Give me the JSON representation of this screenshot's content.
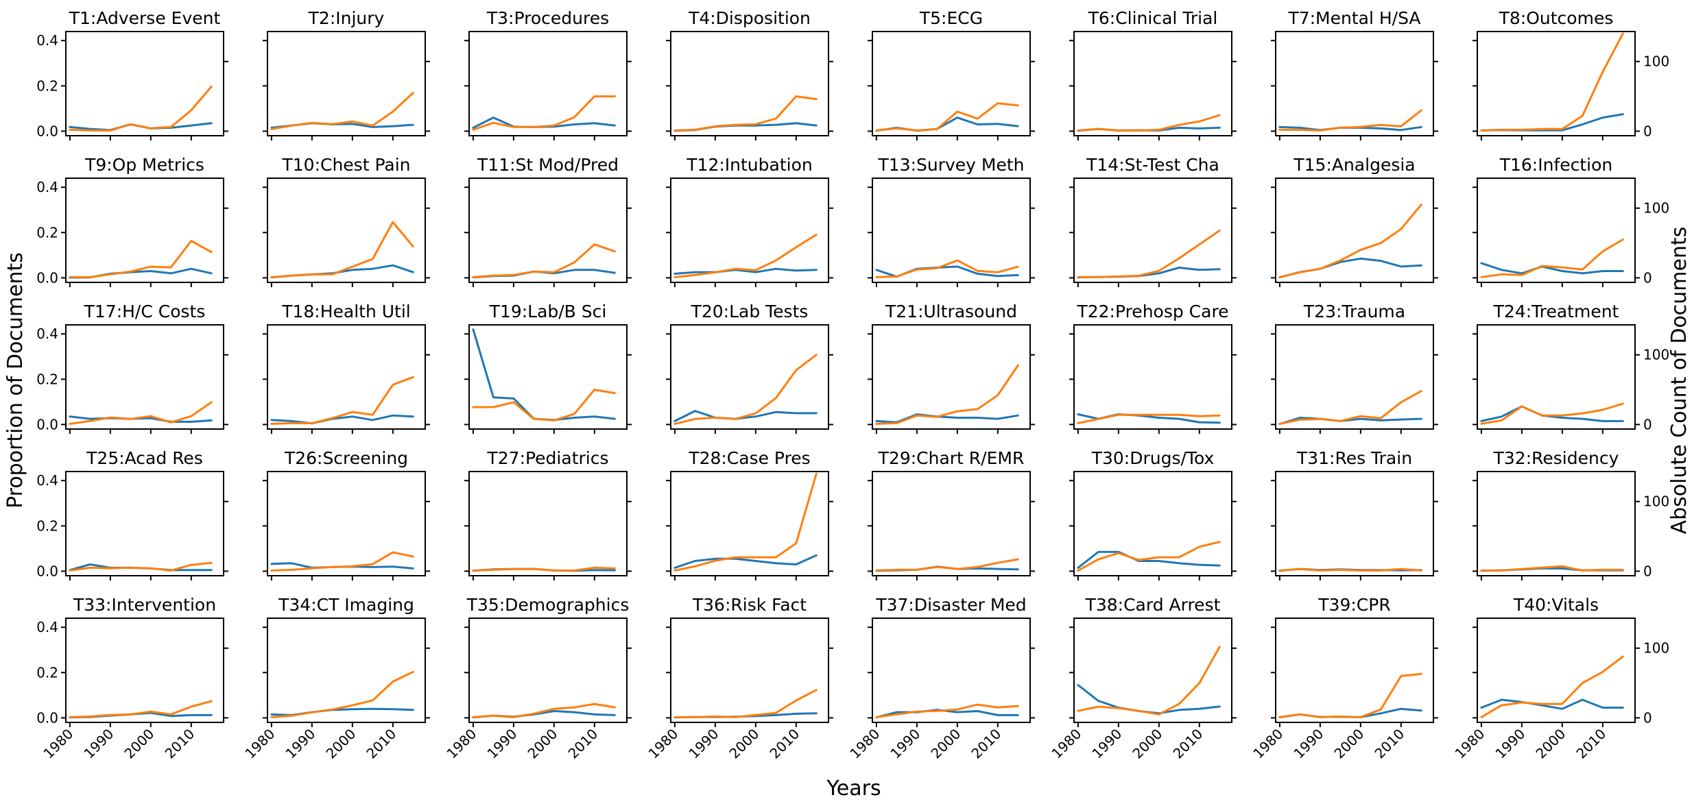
{
  "chart_data": {
    "type": "line",
    "layout": "small-multiples 5x8",
    "xlabel": "Years",
    "ylabel_left": "Proportion of Documents",
    "ylabel_right": "Absolute Count of Documents",
    "x": [
      1980,
      1985,
      1990,
      1995,
      2000,
      2005,
      2010,
      2015
    ],
    "xticks": [
      "1980",
      "1990",
      "2000",
      "2010"
    ],
    "xlim": [
      1979,
      2018
    ],
    "ylim_left": [
      -0.02,
      0.44
    ],
    "ylim_right": [
      -6.5,
      143
    ],
    "yticks_left": [
      "0.0",
      "0.2",
      "0.4"
    ],
    "yticks_right": [
      "0",
      "100"
    ],
    "series_colors": {
      "proportion": "#1f77b4",
      "count": "#ff7f0e"
    },
    "grid": false,
    "legend": "none",
    "panels": [
      {
        "title": "T1:Adverse Event",
        "proportion": [
          0.018,
          0.01,
          0.005,
          0.03,
          0.012,
          0.015,
          0.025,
          0.035
        ],
        "count": [
          2,
          1,
          1,
          10,
          4,
          6,
          30,
          64
        ]
      },
      {
        "title": "T2:Injury",
        "proportion": [
          0.015,
          0.025,
          0.035,
          0.03,
          0.032,
          0.018,
          0.022,
          0.028
        ],
        "count": [
          3,
          8,
          12,
          10,
          14,
          8,
          28,
          55
        ]
      },
      {
        "title": "T3:Procedures",
        "proportion": [
          0.015,
          0.06,
          0.02,
          0.018,
          0.02,
          0.03,
          0.035,
          0.025
        ],
        "count": [
          2,
          12,
          6,
          6,
          8,
          20,
          50,
          50
        ]
      },
      {
        "title": "T4:Disposition",
        "proportion": [
          0.002,
          0.005,
          0.02,
          0.025,
          0.025,
          0.028,
          0.035,
          0.025
        ],
        "count": [
          1,
          2,
          7,
          9,
          10,
          18,
          50,
          46
        ]
      },
      {
        "title": "T5:ECG",
        "proportion": [
          0.002,
          0.015,
          0.002,
          0.01,
          0.06,
          0.03,
          0.032,
          0.022
        ],
        "count": [
          1,
          4,
          1,
          3,
          28,
          18,
          40,
          37
        ]
      },
      {
        "title": "T6:Clinical Trial",
        "proportion": [
          0.002,
          0.01,
          0.003,
          0.004,
          0.003,
          0.015,
          0.012,
          0.015
        ],
        "count": [
          1,
          3,
          1,
          1,
          2,
          9,
          14,
          23
        ]
      },
      {
        "title": "T7:Mental H/SA",
        "proportion": [
          0.018,
          0.015,
          0.005,
          0.015,
          0.015,
          0.012,
          0.005,
          0.018
        ],
        "count": [
          2,
          2,
          1,
          5,
          6,
          9,
          7,
          30
        ]
      },
      {
        "title": "T8:Outcomes",
        "proportion": [
          0.003,
          0.005,
          0.004,
          0.004,
          0.004,
          0.03,
          0.06,
          0.075
        ],
        "count": [
          1,
          2,
          2,
          3,
          3,
          22,
          85,
          140
        ]
      },
      {
        "title": "T9:Op Metrics",
        "proportion": [
          0.001,
          0.002,
          0.018,
          0.025,
          0.03,
          0.02,
          0.04,
          0.02
        ],
        "count": [
          1,
          1,
          5,
          9,
          16,
          15,
          53,
          37
        ]
      },
      {
        "title": "T10:Chest Pain",
        "proportion": [
          0.002,
          0.01,
          0.015,
          0.02,
          0.035,
          0.04,
          0.055,
          0.025
        ],
        "count": [
          1,
          3,
          5,
          5,
          16,
          27,
          80,
          45
        ]
      },
      {
        "title": "T11:St Mod/Pred",
        "proportion": [
          0.002,
          0.008,
          0.01,
          0.028,
          0.02,
          0.035,
          0.035,
          0.022
        ],
        "count": [
          1,
          3,
          4,
          9,
          8,
          22,
          48,
          38
        ]
      },
      {
        "title": "T12:Intubation",
        "proportion": [
          0.018,
          0.025,
          0.025,
          0.035,
          0.025,
          0.04,
          0.032,
          0.035
        ],
        "count": [
          1,
          4,
          8,
          13,
          11,
          25,
          44,
          62
        ]
      },
      {
        "title": "T13:Survey Meth",
        "proportion": [
          0.035,
          0.005,
          0.04,
          0.045,
          0.05,
          0.018,
          0.008,
          0.012
        ],
        "count": [
          1,
          2,
          12,
          14,
          25,
          10,
          8,
          16
        ]
      },
      {
        "title": "T14:St-Test Cha",
        "proportion": [
          0.002,
          0.004,
          0.005,
          0.008,
          0.02,
          0.045,
          0.035,
          0.038
        ],
        "count": [
          1,
          1,
          2,
          3,
          10,
          28,
          48,
          68
        ]
      },
      {
        "title": "T15:Analgesia",
        "proportion": [
          0.002,
          0.025,
          0.04,
          0.07,
          0.085,
          0.075,
          0.05,
          0.055
        ],
        "count": [
          1,
          8,
          13,
          25,
          40,
          50,
          70,
          105
        ]
      },
      {
        "title": "T16:Infection",
        "proportion": [
          0.065,
          0.035,
          0.02,
          0.05,
          0.03,
          0.02,
          0.03,
          0.03
        ],
        "count": [
          1,
          5,
          4,
          17,
          15,
          12,
          38,
          55
        ]
      },
      {
        "title": "T17:H/C Costs",
        "proportion": [
          0.035,
          0.025,
          0.028,
          0.025,
          0.028,
          0.012,
          0.012,
          0.018
        ],
        "count": [
          1,
          5,
          10,
          8,
          12,
          3,
          12,
          32
        ]
      },
      {
        "title": "T18:Health Util",
        "proportion": [
          0.02,
          0.015,
          0.005,
          0.025,
          0.035,
          0.02,
          0.04,
          0.035
        ],
        "count": [
          1,
          2,
          2,
          9,
          18,
          14,
          57,
          68
        ]
      },
      {
        "title": "T19:Lab/B Sci",
        "proportion": [
          0.42,
          0.12,
          0.115,
          0.025,
          0.02,
          0.03,
          0.035,
          0.025
        ],
        "count": [
          25,
          25,
          32,
          8,
          6,
          15,
          50,
          45
        ]
      },
      {
        "title": "T20:Lab Tests",
        "proportion": [
          0.015,
          0.06,
          0.03,
          0.025,
          0.035,
          0.055,
          0.05,
          0.05
        ],
        "count": [
          1,
          8,
          10,
          8,
          16,
          38,
          78,
          100
        ]
      },
      {
        "title": "T21:Ultrasound",
        "proportion": [
          0.015,
          0.01,
          0.045,
          0.035,
          0.03,
          0.03,
          0.025,
          0.04
        ],
        "count": [
          1,
          2,
          13,
          11,
          19,
          22,
          42,
          85
        ]
      },
      {
        "title": "T22:Prehosp Care",
        "proportion": [
          0.045,
          0.025,
          0.045,
          0.04,
          0.03,
          0.025,
          0.01,
          0.008
        ],
        "count": [
          2,
          8,
          14,
          14,
          14,
          14,
          12,
          13
        ]
      },
      {
        "title": "T23:Trauma",
        "proportion": [
          0.002,
          0.03,
          0.025,
          0.015,
          0.025,
          0.018,
          0.022,
          0.025
        ],
        "count": [
          1,
          7,
          8,
          5,
          12,
          9,
          32,
          48
        ]
      },
      {
        "title": "T24:Treatment",
        "proportion": [
          0.015,
          0.035,
          0.08,
          0.04,
          0.03,
          0.025,
          0.015,
          0.015
        ],
        "count": [
          1,
          6,
          26,
          13,
          13,
          16,
          21,
          30
        ]
      },
      {
        "title": "T25:Acad Res",
        "proportion": [
          0.005,
          0.03,
          0.015,
          0.015,
          0.012,
          0.005,
          0.005,
          0.005
        ],
        "count": [
          1,
          5,
          4,
          5,
          4,
          1,
          9,
          12
        ]
      },
      {
        "title": "T26:Screening",
        "proportion": [
          0.032,
          0.035,
          0.015,
          0.018,
          0.02,
          0.018,
          0.02,
          0.012
        ],
        "count": [
          1,
          2,
          4,
          6,
          7,
          10,
          27,
          21
        ]
      },
      {
        "title": "T27:Pediatrics",
        "proportion": [
          0.002,
          0.008,
          0.01,
          0.01,
          0.003,
          0.002,
          0.005,
          0.004
        ],
        "count": [
          1,
          2,
          3,
          3,
          1,
          1,
          5,
          4
        ]
      },
      {
        "title": "T28:Case Pres",
        "proportion": [
          0.015,
          0.045,
          0.055,
          0.055,
          0.045,
          0.035,
          0.03,
          0.07
        ],
        "count": [
          1,
          7,
          15,
          20,
          20,
          20,
          40,
          140
        ]
      },
      {
        "title": "T29:Chart R/EMR",
        "proportion": [
          0.002,
          0.004,
          0.006,
          0.02,
          0.01,
          0.012,
          0.01,
          0.008
        ],
        "count": [
          1,
          2,
          2,
          6,
          3,
          6,
          12,
          17
        ]
      },
      {
        "title": "T30:Drugs/Tox",
        "proportion": [
          0.015,
          0.085,
          0.085,
          0.045,
          0.045,
          0.035,
          0.028,
          0.025
        ],
        "count": [
          1,
          17,
          26,
          16,
          20,
          20,
          35,
          42
        ]
      },
      {
        "title": "T31:Res Train",
        "proportion": [
          0.002,
          0.01,
          0.005,
          0.008,
          0.005,
          0.005,
          0.004,
          0.005
        ],
        "count": [
          1,
          3,
          1,
          2,
          1,
          1,
          3,
          1
        ]
      },
      {
        "title": "T32:Residency",
        "proportion": [
          0.002,
          0.004,
          0.008,
          0.012,
          0.012,
          0.004,
          0.004,
          0.004
        ],
        "count": [
          1,
          1,
          3,
          5,
          7,
          1,
          2,
          2
        ]
      },
      {
        "title": "T33:Intervention",
        "proportion": [
          0.002,
          0.004,
          0.01,
          0.015,
          0.022,
          0.008,
          0.012,
          0.012
        ],
        "count": [
          1,
          2,
          4,
          5,
          9,
          5,
          16,
          24
        ]
      },
      {
        "title": "T34:CT Imaging",
        "proportion": [
          0.015,
          0.012,
          0.025,
          0.035,
          0.038,
          0.04,
          0.038,
          0.035
        ],
        "count": [
          1,
          3,
          8,
          12,
          18,
          25,
          52,
          66
        ]
      },
      {
        "title": "T35:Demographics",
        "proportion": [
          0.002,
          0.01,
          0.005,
          0.015,
          0.03,
          0.025,
          0.015,
          0.012
        ],
        "count": [
          1,
          3,
          1,
          6,
          13,
          15,
          20,
          15
        ]
      },
      {
        "title": "T36:Risk Fact",
        "proportion": [
          0.002,
          0.004,
          0.004,
          0.005,
          0.008,
          0.012,
          0.018,
          0.02
        ],
        "count": [
          1,
          1,
          2,
          1,
          4,
          7,
          25,
          40
        ]
      },
      {
        "title": "T37:Disaster Med",
        "proportion": [
          0.002,
          0.025,
          0.025,
          0.035,
          0.025,
          0.03,
          0.012,
          0.012
        ],
        "count": [
          1,
          5,
          9,
          10,
          12,
          19,
          15,
          17
        ]
      },
      {
        "title": "T38:Card Arrest",
        "proportion": [
          0.145,
          0.075,
          0.045,
          0.03,
          0.02,
          0.035,
          0.04,
          0.05
        ],
        "count": [
          10,
          16,
          14,
          10,
          5,
          20,
          50,
          102
        ]
      },
      {
        "title": "T39:CPR",
        "proportion": [
          0.002,
          0.015,
          0.004,
          0.005,
          0.003,
          0.02,
          0.04,
          0.032
        ],
        "count": [
          1,
          5,
          1,
          2,
          1,
          12,
          60,
          63
        ]
      },
      {
        "title": "T40:Vitals",
        "proportion": [
          0.045,
          0.08,
          0.07,
          0.055,
          0.04,
          0.08,
          0.045,
          0.045
        ],
        "count": [
          1,
          18,
          22,
          20,
          20,
          50,
          66,
          88
        ]
      }
    ]
  }
}
